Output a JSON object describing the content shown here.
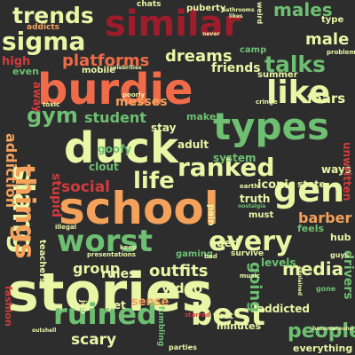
{
  "title": "",
  "words": {
    "stories": "stories",
    "school": "school",
    "duck": "duck",
    "burdie": "burdie",
    "similar": "similar",
    "types": "types",
    "worst": "worst",
    "slang": "slang",
    "things": "things",
    "ruined": "ruined",
    "best": "best",
    "every": "every",
    "gen": "gen",
    "like": "like",
    "sigma": "sigma",
    "trends": "trends",
    "ranked": "ranked",
    "talks": "talks",
    "life": "life",
    "gym": "gym",
    "people": "people",
    "males": "males",
    "male": "male",
    "platforms": "platforms",
    "dreams": "dreams",
    "student": "student",
    "outfits": "outfits",
    "media": "media",
    "group": "group",
    "social": "social",
    "scary": "scary",
    "rules": "rules",
    "video": "video",
    "going": "going",
    "barber": "barber",
    "addiction": "addiction",
    "fears": "fears",
    "friends": "friends",
    "high": "high",
    "even": "even",
    "away": "away",
    "stupid": "stupid",
    "adult": "adult",
    "stay": "stay",
    "messes": "messes",
    "makes": "makes",
    "system": "system",
    "clout": "clout",
    "goofy": "goofy",
    "truth": "truth",
    "must": "must",
    "iconic": "iconic",
    "state": "state",
    "ways": "ways",
    "feels": "feels",
    "hub": "hub",
    "levels": "levels",
    "drivers": "drivers",
    "unwritten": "unwritten",
    "addicted": "addicted",
    "first": "first",
    "minutes": "minutes",
    "sense": "sense",
    "aged": "aged",
    "everything": "everything",
    "yet": "yet",
    "gaming": "gaming",
    "fashion": "fashion",
    "mobile": "mobile",
    "summer": "summer",
    "puberty": "puberty",
    "camp": "camp",
    "type": "type",
    "chats": "chats",
    "teachers": "teachers",
    "addicts": "addicts",
    "survive": "survive",
    "pain": "pain",
    "job": "job",
    "fumbling": "fumbling",
    "gone": "gone",
    "guys": "guys",
    "parties": "parties",
    "problem": "problem",
    "presentations": "presentations",
    "cringe": "cringe",
    "poorly": "poorly",
    "toxic": "toxic",
    "keep": "keep",
    "bad": "bad",
    "music": "music",
    "starred": "starred",
    "illegal": "illegal",
    "earth": "earth",
    "nostalgia": "nostalgia",
    "weird": "weird",
    "explained": "explained",
    "celebrities": "celebrities",
    "bathrooms": "bathrooms",
    "likes": "likes",
    "never": "never",
    "word": "word",
    "become": "become",
    "around": "around",
    "outshell": "outshell"
  }
}
